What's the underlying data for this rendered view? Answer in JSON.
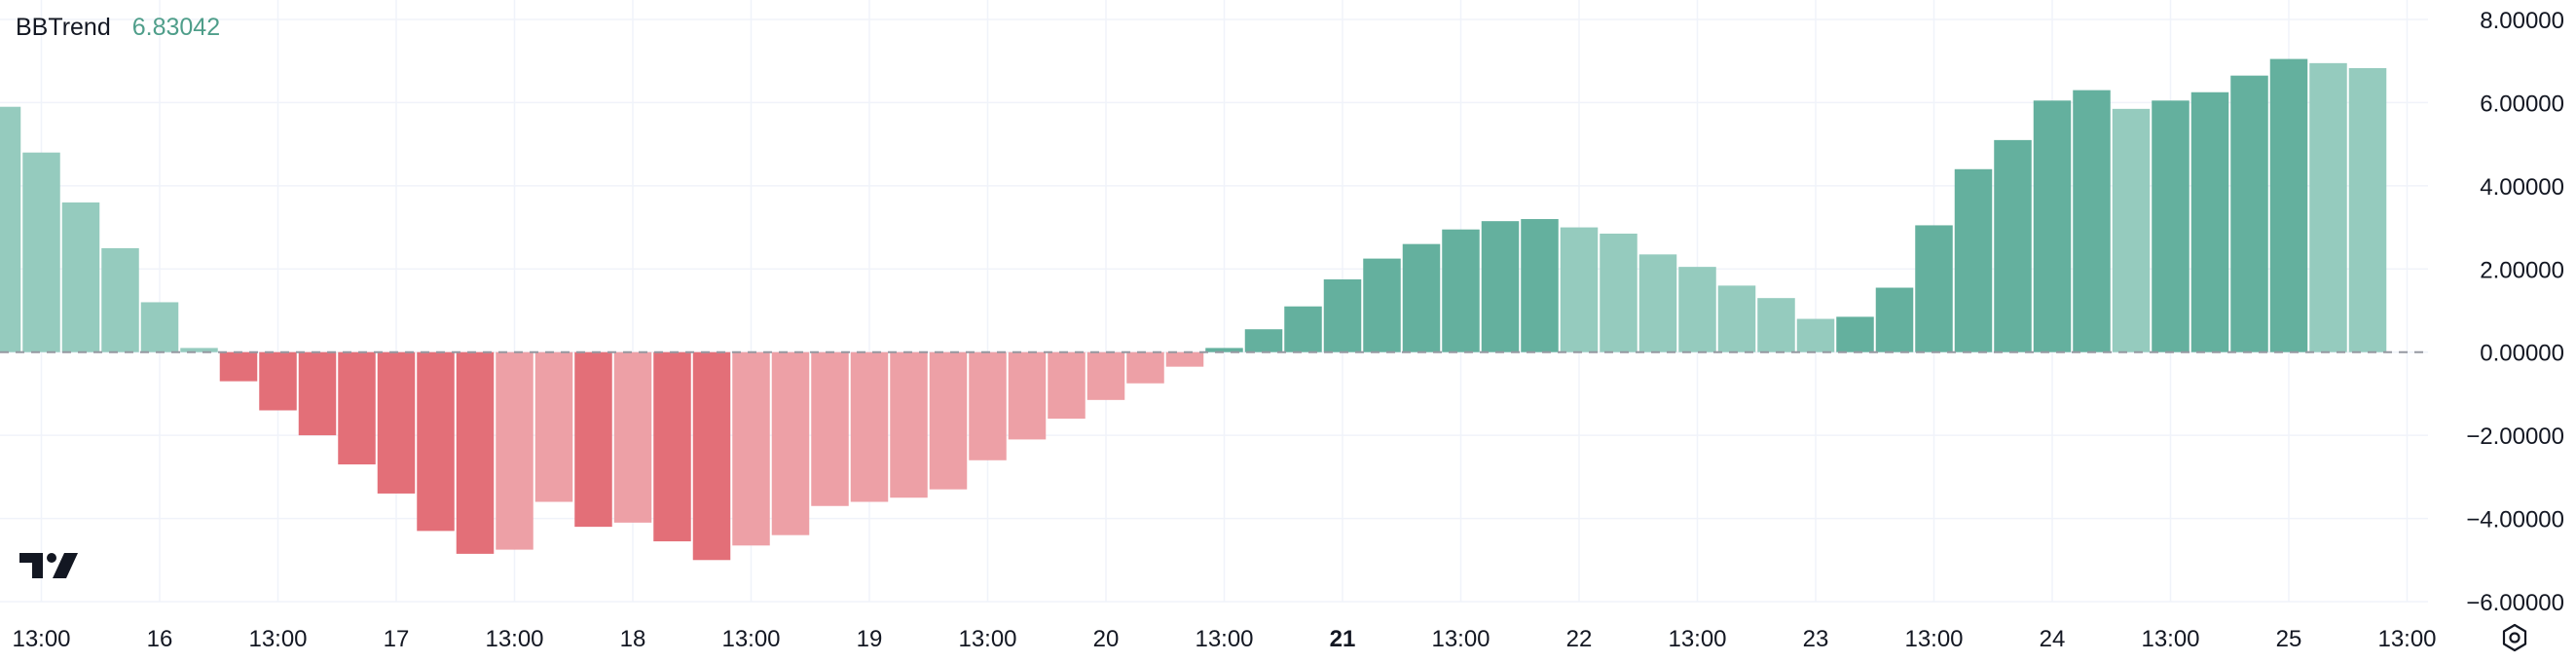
{
  "indicator": {
    "name": "BBTrend",
    "value": "6.83042"
  },
  "colors": {
    "pos_strong": "#64b09e",
    "pos_weak": "#95cbbe",
    "neg_strong": "#e36f78",
    "neg_weak": "#eda0a6",
    "grid": "#f0f3fa",
    "zero_line": "#9598a1",
    "text": "#131722",
    "value_text": "#4f9e8a"
  },
  "icons": {
    "logo": "tradingview-logo-icon",
    "settings": "settings-gear-icon"
  },
  "chart_data": {
    "type": "bar",
    "series": [
      {
        "name": "BBTrend",
        "values": [
          5.9,
          4.8,
          3.6,
          2.5,
          1.2,
          0.1,
          -0.7,
          -1.4,
          -2.0,
          -2.7,
          -3.4,
          -4.3,
          -4.85,
          -4.75,
          -3.6,
          -4.2,
          -4.1,
          -4.55,
          -5.0,
          -4.65,
          -4.4,
          -3.7,
          -3.6,
          -3.5,
          -3.3,
          -2.6,
          -2.1,
          -1.6,
          -1.15,
          -0.75,
          -0.35,
          0.1,
          0.55,
          1.1,
          1.75,
          2.25,
          2.6,
          2.95,
          3.15,
          3.2,
          3.0,
          2.85,
          2.35,
          2.05,
          1.6,
          1.3,
          0.8,
          0.85,
          1.55,
          3.05,
          4.4,
          5.1,
          6.05,
          6.3,
          5.85,
          6.05,
          6.25,
          6.65,
          7.05,
          6.95,
          6.83042
        ],
        "colors": [
          "weak",
          "weak",
          "weak",
          "weak",
          "weak",
          "weak",
          "strong",
          "strong",
          "strong",
          "strong",
          "strong",
          "strong",
          "strong",
          "weak",
          "weak",
          "strong",
          "weak",
          "strong",
          "strong",
          "weak",
          "weak",
          "weak",
          "weak",
          "weak",
          "weak",
          "weak",
          "weak",
          "weak",
          "weak",
          "weak",
          "weak",
          "strong",
          "strong",
          "strong",
          "strong",
          "strong",
          "strong",
          "strong",
          "strong",
          "strong",
          "weak",
          "weak",
          "weak",
          "weak",
          "weak",
          "weak",
          "weak",
          "strong",
          "strong",
          "strong",
          "strong",
          "strong",
          "strong",
          "strong",
          "weak",
          "strong",
          "strong",
          "strong",
          "strong",
          "weak",
          "weak"
        ]
      }
    ],
    "x_tick_labels": [
      {
        "label": "13:00",
        "bar": 1
      },
      {
        "label": "16",
        "bar": 4
      },
      {
        "label": "13:00",
        "bar": 7
      },
      {
        "label": "17",
        "bar": 10
      },
      {
        "label": "13:00",
        "bar": 13
      },
      {
        "label": "18",
        "bar": 16
      },
      {
        "label": "13:00",
        "bar": 19
      },
      {
        "label": "19",
        "bar": 22
      },
      {
        "label": "13:00",
        "bar": 25
      },
      {
        "label": "20",
        "bar": 28
      },
      {
        "label": "13:00",
        "bar": 31
      },
      {
        "label": "21",
        "bar": 34,
        "bold": true
      },
      {
        "label": "13:00",
        "bar": 37
      },
      {
        "label": "22",
        "bar": 40
      },
      {
        "label": "13:00",
        "bar": 43
      },
      {
        "label": "23",
        "bar": 46
      },
      {
        "label": "13:00",
        "bar": 49
      },
      {
        "label": "24",
        "bar": 52
      },
      {
        "label": "13:00",
        "bar": 55
      },
      {
        "label": "25",
        "bar": 58
      },
      {
        "label": "13:00",
        "bar": 61
      }
    ],
    "y_ticks": [
      8,
      6,
      4,
      2,
      0,
      -2,
      -4,
      -6
    ],
    "y_tick_labels": [
      "8.00000",
      "6.00000",
      "4.00000",
      "2.00000",
      "0.00000",
      "−2.00000",
      "−4.00000",
      "−6.00000"
    ],
    "ylim": [
      -6,
      8
    ],
    "zero_line": "dashed",
    "grid": true
  }
}
